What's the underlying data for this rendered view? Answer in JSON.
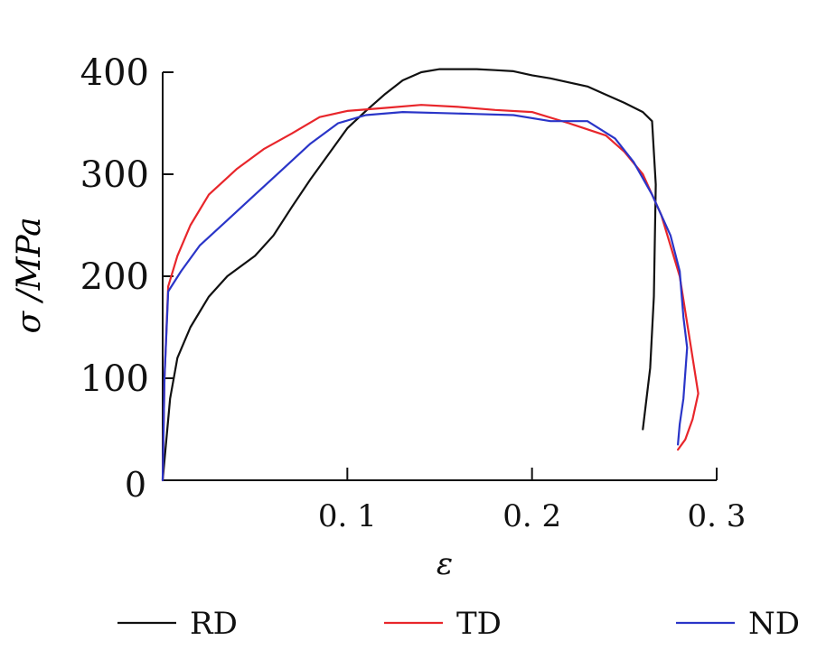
{
  "chart_data": {
    "type": "line",
    "title": "",
    "xlabel": "ε",
    "ylabel": "σ /MPa",
    "xlim": [
      0,
      0.3
    ],
    "ylim": [
      0,
      400
    ],
    "x_ticks": [
      {
        "value": 0.1,
        "label": "0. 1"
      },
      {
        "value": 0.2,
        "label": "0. 2"
      },
      {
        "value": 0.3,
        "label": "0. 3"
      }
    ],
    "y_ticks": [
      {
        "value": 0,
        "label": "0"
      },
      {
        "value": 100,
        "label": "100"
      },
      {
        "value": 200,
        "label": "200"
      },
      {
        "value": 300,
        "label": "300"
      },
      {
        "value": 400,
        "label": "400"
      }
    ],
    "legend_position": "bottom",
    "series": [
      {
        "name": "RD",
        "color": "#111111",
        "points": [
          [
            0,
            0
          ],
          [
            0.002,
            40
          ],
          [
            0.004,
            80
          ],
          [
            0.008,
            120
          ],
          [
            0.015,
            150
          ],
          [
            0.025,
            180
          ],
          [
            0.035,
            200
          ],
          [
            0.05,
            220
          ],
          [
            0.06,
            240
          ],
          [
            0.07,
            268
          ],
          [
            0.08,
            295
          ],
          [
            0.09,
            320
          ],
          [
            0.1,
            345
          ],
          [
            0.11,
            362
          ],
          [
            0.12,
            378
          ],
          [
            0.13,
            392
          ],
          [
            0.14,
            400
          ],
          [
            0.15,
            403
          ],
          [
            0.16,
            403
          ],
          [
            0.17,
            403
          ],
          [
            0.18,
            402
          ],
          [
            0.19,
            401
          ],
          [
            0.2,
            397
          ],
          [
            0.21,
            394
          ],
          [
            0.22,
            390
          ],
          [
            0.23,
            386
          ],
          [
            0.24,
            378
          ],
          [
            0.25,
            370
          ],
          [
            0.26,
            361
          ],
          [
            0.265,
            352
          ],
          [
            0.267,
            290
          ],
          [
            0.266,
            180
          ],
          [
            0.264,
            110
          ],
          [
            0.26,
            50
          ]
        ]
      },
      {
        "name": "TD",
        "color": "#e8262b",
        "points": [
          [
            0,
            0
          ],
          [
            0.001,
            100
          ],
          [
            0.003,
            190
          ],
          [
            0.008,
            220
          ],
          [
            0.015,
            250
          ],
          [
            0.025,
            280
          ],
          [
            0.04,
            305
          ],
          [
            0.055,
            325
          ],
          [
            0.07,
            340
          ],
          [
            0.085,
            356
          ],
          [
            0.1,
            362
          ],
          [
            0.12,
            365
          ],
          [
            0.14,
            368
          ],
          [
            0.16,
            366
          ],
          [
            0.18,
            363
          ],
          [
            0.2,
            361
          ],
          [
            0.22,
            350
          ],
          [
            0.24,
            338
          ],
          [
            0.25,
            322
          ],
          [
            0.26,
            300
          ],
          [
            0.27,
            260
          ],
          [
            0.28,
            200
          ],
          [
            0.287,
            120
          ],
          [
            0.29,
            85
          ],
          [
            0.287,
            60
          ],
          [
            0.283,
            40
          ],
          [
            0.279,
            30
          ]
        ]
      },
      {
        "name": "ND",
        "color": "#2a35c8",
        "points": [
          [
            0,
            0
          ],
          [
            0.001,
            100
          ],
          [
            0.003,
            185
          ],
          [
            0.01,
            205
          ],
          [
            0.02,
            230
          ],
          [
            0.035,
            255
          ],
          [
            0.05,
            280
          ],
          [
            0.065,
            305
          ],
          [
            0.08,
            330
          ],
          [
            0.095,
            350
          ],
          [
            0.11,
            358
          ],
          [
            0.13,
            361
          ],
          [
            0.15,
            360
          ],
          [
            0.17,
            359
          ],
          [
            0.19,
            358
          ],
          [
            0.21,
            352
          ],
          [
            0.22,
            352
          ],
          [
            0.23,
            352
          ],
          [
            0.245,
            335
          ],
          [
            0.255,
            312
          ],
          [
            0.265,
            280
          ],
          [
            0.275,
            240
          ],
          [
            0.28,
            205
          ],
          [
            0.282,
            160
          ],
          [
            0.284,
            130
          ],
          [
            0.282,
            80
          ],
          [
            0.28,
            55
          ],
          [
            0.279,
            35
          ]
        ]
      }
    ]
  }
}
